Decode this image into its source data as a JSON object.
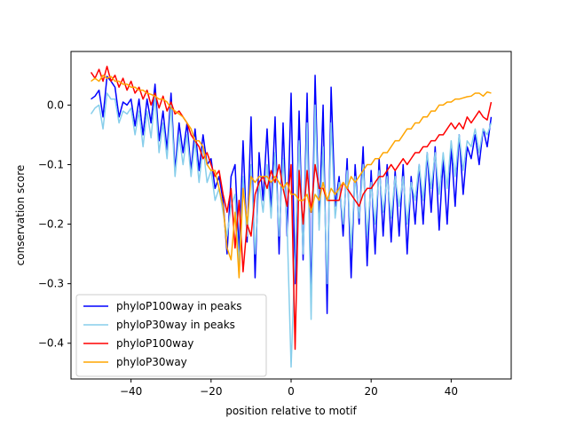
{
  "chart_data": {
    "type": "line",
    "title": "",
    "xlabel": "position relative to motif",
    "ylabel": "conservation score",
    "xlim": [
      -55,
      55
    ],
    "ylim": [
      -0.46,
      0.09
    ],
    "xticks": [
      -40,
      -20,
      0,
      20,
      40
    ],
    "yticks": [
      0.0,
      -0.1,
      -0.2,
      -0.3,
      -0.4
    ],
    "xtick_labels": [
      "−40",
      "−20",
      "0",
      "20",
      "40"
    ],
    "ytick_labels": [
      "0.0",
      "−0.1",
      "−0.2",
      "−0.3",
      "−0.4"
    ],
    "grid": false,
    "legend_position": "lower-left",
    "x": [
      -50,
      -49,
      -48,
      -47,
      -46,
      -45,
      -44,
      -43,
      -42,
      -41,
      -40,
      -39,
      -38,
      -37,
      -36,
      -35,
      -34,
      -33,
      -32,
      -31,
      -30,
      -29,
      -28,
      -27,
      -26,
      -25,
      -24,
      -23,
      -22,
      -21,
      -20,
      -19,
      -18,
      -17,
      -16,
      -15,
      -14,
      -13,
      -12,
      -11,
      -10,
      -9,
      -8,
      -7,
      -6,
      -5,
      -4,
      -3,
      -2,
      -1,
      0,
      1,
      2,
      3,
      4,
      5,
      6,
      7,
      8,
      9,
      10,
      11,
      12,
      13,
      14,
      15,
      16,
      17,
      18,
      19,
      20,
      21,
      22,
      23,
      24,
      25,
      26,
      27,
      28,
      29,
      30,
      31,
      32,
      33,
      34,
      35,
      36,
      37,
      38,
      39,
      40,
      41,
      42,
      43,
      44,
      45,
      46,
      47,
      48,
      49,
      50
    ],
    "series": [
      {
        "name": "phyloP100way in peaks",
        "color": "#0000ff",
        "values": [
          0.01,
          0.015,
          0.025,
          -0.02,
          0.048,
          0.04,
          0.03,
          -0.02,
          0.005,
          0.0,
          0.01,
          -0.035,
          0.01,
          -0.05,
          0.01,
          -0.03,
          0.035,
          -0.06,
          -0.01,
          -0.075,
          0.02,
          -0.11,
          -0.03,
          -0.08,
          -0.03,
          -0.11,
          -0.04,
          -0.11,
          -0.05,
          -0.1,
          -0.09,
          -0.14,
          -0.12,
          -0.16,
          -0.25,
          -0.12,
          -0.1,
          -0.25,
          -0.06,
          -0.23,
          -0.02,
          -0.29,
          -0.08,
          -0.16,
          -0.04,
          -0.18,
          -0.02,
          -0.25,
          -0.03,
          -0.22,
          0.02,
          -0.3,
          -0.01,
          -0.26,
          0.02,
          -0.33,
          0.05,
          -0.2,
          0.0,
          -0.35,
          0.03,
          -0.17,
          -0.12,
          -0.22,
          -0.09,
          -0.29,
          -0.1,
          -0.2,
          -0.07,
          -0.27,
          -0.11,
          -0.25,
          -0.09,
          -0.22,
          -0.1,
          -0.23,
          -0.11,
          -0.22,
          -0.1,
          -0.25,
          -0.12,
          -0.2,
          -0.1,
          -0.2,
          -0.08,
          -0.18,
          -0.07,
          -0.21,
          -0.09,
          -0.2,
          -0.07,
          -0.17,
          -0.05,
          -0.15,
          -0.07,
          -0.09,
          -0.05,
          -0.1,
          -0.04,
          -0.07,
          -0.02
        ],
        "draw_order": 0
      },
      {
        "name": "phyloP30way in peaks",
        "color": "#87ceeb",
        "values": [
          -0.015,
          -0.005,
          0.0,
          -0.04,
          0.02,
          0.01,
          0.01,
          -0.03,
          -0.01,
          -0.015,
          -0.005,
          -0.05,
          -0.01,
          -0.07,
          -0.01,
          -0.055,
          0.015,
          -0.08,
          -0.03,
          -0.09,
          0.0,
          -0.12,
          -0.05,
          -0.1,
          -0.05,
          -0.12,
          -0.06,
          -0.13,
          -0.07,
          -0.13,
          -0.11,
          -0.16,
          -0.14,
          -0.18,
          -0.22,
          -0.17,
          -0.15,
          -0.27,
          -0.12,
          -0.22,
          -0.1,
          -0.25,
          -0.13,
          -0.18,
          -0.1,
          -0.19,
          -0.08,
          -0.22,
          -0.09,
          -0.2,
          -0.44,
          -0.25,
          -0.06,
          -0.25,
          -0.03,
          -0.36,
          0.0,
          -0.21,
          -0.07,
          -0.3,
          -0.03,
          -0.19,
          -0.13,
          -0.2,
          -0.11,
          -0.24,
          -0.12,
          -0.19,
          -0.1,
          -0.22,
          -0.13,
          -0.2,
          -0.11,
          -0.18,
          -0.12,
          -0.19,
          -0.12,
          -0.17,
          -0.12,
          -0.2,
          -0.13,
          -0.16,
          -0.1,
          -0.16,
          -0.08,
          -0.14,
          -0.08,
          -0.15,
          -0.08,
          -0.14,
          -0.06,
          -0.12,
          -0.05,
          -0.11,
          -0.06,
          -0.07,
          -0.04,
          -0.08,
          -0.04,
          -0.05,
          -0.03
        ],
        "draw_order": 1
      },
      {
        "name": "phyloP100way",
        "color": "#ff0000",
        "values": [
          0.055,
          0.045,
          0.06,
          0.04,
          0.065,
          0.04,
          0.05,
          0.03,
          0.045,
          0.025,
          0.04,
          0.02,
          0.03,
          0.01,
          0.025,
          0.0,
          0.02,
          -0.005,
          0.015,
          -0.01,
          0.005,
          -0.015,
          -0.01,
          -0.02,
          -0.03,
          -0.05,
          -0.06,
          -0.07,
          -0.09,
          -0.08,
          -0.1,
          -0.12,
          -0.11,
          -0.15,
          -0.18,
          -0.14,
          -0.24,
          -0.16,
          -0.28,
          -0.2,
          -0.22,
          -0.15,
          -0.13,
          -0.12,
          -0.14,
          -0.11,
          -0.13,
          -0.1,
          -0.14,
          -0.17,
          -0.1,
          -0.41,
          -0.11,
          -0.2,
          -0.11,
          -0.18,
          -0.1,
          -0.14,
          -0.14,
          -0.16,
          -0.16,
          -0.16,
          -0.16,
          -0.13,
          -0.14,
          -0.15,
          -0.16,
          -0.17,
          -0.15,
          -0.14,
          -0.14,
          -0.13,
          -0.12,
          -0.12,
          -0.11,
          -0.1,
          -0.11,
          -0.1,
          -0.09,
          -0.1,
          -0.09,
          -0.08,
          -0.08,
          -0.07,
          -0.07,
          -0.06,
          -0.06,
          -0.05,
          -0.05,
          -0.04,
          -0.03,
          -0.04,
          -0.03,
          -0.04,
          -0.02,
          -0.03,
          -0.02,
          -0.01,
          -0.02,
          -0.025,
          0.005
        ],
        "draw_order": 2
      },
      {
        "name": "phyloP30way",
        "color": "#ffa500",
        "values": [
          0.04,
          0.045,
          0.04,
          0.05,
          0.045,
          0.048,
          0.04,
          0.04,
          0.035,
          0.035,
          0.03,
          0.03,
          0.025,
          0.025,
          0.02,
          0.018,
          0.015,
          0.01,
          0.01,
          0.005,
          -0.005,
          -0.01,
          -0.015,
          -0.02,
          -0.03,
          -0.04,
          -0.06,
          -0.06,
          -0.07,
          -0.1,
          -0.11,
          -0.11,
          -0.14,
          -0.17,
          -0.24,
          -0.26,
          -0.18,
          -0.29,
          -0.14,
          -0.2,
          -0.12,
          -0.13,
          -0.12,
          -0.12,
          -0.12,
          -0.13,
          -0.12,
          -0.13,
          -0.14,
          -0.13,
          -0.15,
          -0.15,
          -0.16,
          -0.16,
          -0.15,
          -0.18,
          -0.15,
          -0.16,
          -0.13,
          -0.16,
          -0.14,
          -0.15,
          -0.14,
          -0.13,
          -0.14,
          -0.12,
          -0.13,
          -0.12,
          -0.11,
          -0.1,
          -0.1,
          -0.09,
          -0.09,
          -0.08,
          -0.08,
          -0.07,
          -0.06,
          -0.06,
          -0.05,
          -0.04,
          -0.04,
          -0.03,
          -0.03,
          -0.02,
          -0.02,
          -0.01,
          -0.01,
          0.0,
          0.0,
          0.005,
          0.005,
          0.01,
          0.01,
          0.012,
          0.014,
          0.015,
          0.02,
          0.02,
          0.015,
          0.022,
          0.02
        ],
        "draw_order": 3
      }
    ]
  }
}
